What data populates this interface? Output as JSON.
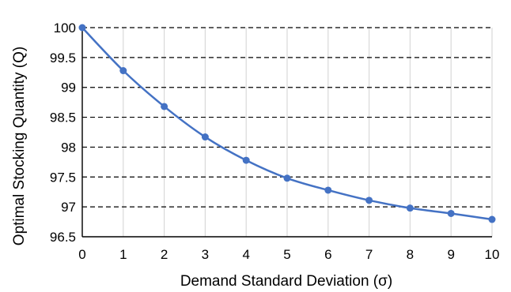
{
  "chart_data": {
    "type": "line",
    "xlabel": "Demand Standard Deviation (σ)",
    "ylabel": "Optimal Stocking Quantity (Q)",
    "xlim": [
      0,
      10
    ],
    "ylim": [
      96.5,
      100
    ],
    "x_ticks": [
      0,
      1,
      2,
      3,
      4,
      5,
      6,
      7,
      8,
      9,
      10
    ],
    "y_ticks": [
      96.5,
      97,
      97.5,
      98,
      98.5,
      99,
      99.5,
      100
    ],
    "x_tick_labels": [
      "0",
      "1",
      "2",
      "3",
      "4",
      "5",
      "6",
      "7",
      "8",
      "9",
      "10"
    ],
    "y_tick_labels": [
      "96.5",
      "97",
      "97.5",
      "98",
      "98.5",
      "99",
      "99.5",
      "100"
    ],
    "grid": {
      "horizontal": "dashed",
      "vertical": "solid-light"
    },
    "legend": "none",
    "series": [
      {
        "x": [
          0,
          1,
          2,
          3,
          4,
          5,
          6,
          7,
          8,
          9,
          10
        ],
        "values": [
          100,
          99.28,
          98.68,
          98.17,
          97.78,
          97.48,
          97.28,
          97.11,
          96.98,
          96.89,
          96.79
        ],
        "color": "#4472C4",
        "smooth": true,
        "markers": "circle"
      }
    ]
  }
}
